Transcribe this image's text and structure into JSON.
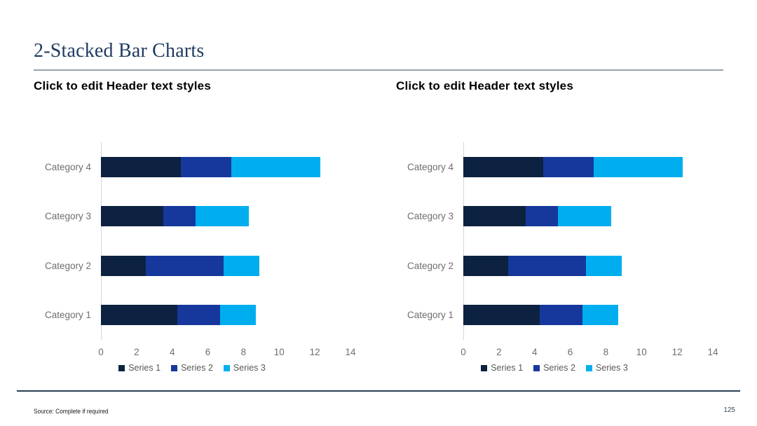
{
  "slide": {
    "title": "2-Stacked Bar Charts",
    "footer": {
      "source": "Source: Complete if required",
      "page_number": "125"
    }
  },
  "palette": {
    "title_navy": "#1e3a5f",
    "series1": "#0d2240",
    "series2": "#16389c",
    "series3": "#00aeef",
    "axis_text_gray": "#6e6e6e"
  },
  "chart_data": [
    {
      "type": "bar",
      "orientation": "horizontal",
      "stacked": true,
      "header": "Click to edit Header text styles",
      "categories": [
        "Category 1",
        "Category 2",
        "Category 3",
        "Category 4"
      ],
      "category_display_order_top_to_bottom": [
        "Category 4",
        "Category 3",
        "Category 2",
        "Category 1"
      ],
      "series": [
        {
          "name": "Series 1",
          "color": "#0d2240",
          "values": [
            4.3,
            2.5,
            3.5,
            4.5
          ]
        },
        {
          "name": "Series 2",
          "color": "#16389c",
          "values": [
            2.4,
            4.4,
            1.8,
            2.8
          ]
        },
        {
          "name": "Series 3",
          "color": "#00aeef",
          "values": [
            2.0,
            2.0,
            3.0,
            5.0
          ]
        }
      ],
      "xlim": [
        0,
        14
      ],
      "xticks": [
        "0",
        "2",
        "4",
        "6",
        "8",
        "10",
        "12",
        "14"
      ],
      "grid": false,
      "legend_position": "bottom"
    },
    {
      "type": "bar",
      "orientation": "horizontal",
      "stacked": true,
      "header": "Click to edit Header text styles",
      "categories": [
        "Category 1",
        "Category 2",
        "Category 3",
        "Category 4"
      ],
      "category_display_order_top_to_bottom": [
        "Category 4",
        "Category 3",
        "Category 2",
        "Category 1"
      ],
      "series": [
        {
          "name": "Series 1",
          "color": "#0d2240",
          "values": [
            4.3,
            2.5,
            3.5,
            4.5
          ]
        },
        {
          "name": "Series 2",
          "color": "#16389c",
          "values": [
            2.4,
            4.4,
            1.8,
            2.8
          ]
        },
        {
          "name": "Series 3",
          "color": "#00aeef",
          "values": [
            2.0,
            2.0,
            3.0,
            5.0
          ]
        }
      ],
      "xlim": [
        0,
        14
      ],
      "xticks": [
        "0",
        "2",
        "4",
        "6",
        "8",
        "10",
        "12",
        "14"
      ],
      "grid": false,
      "legend_position": "bottom"
    }
  ]
}
